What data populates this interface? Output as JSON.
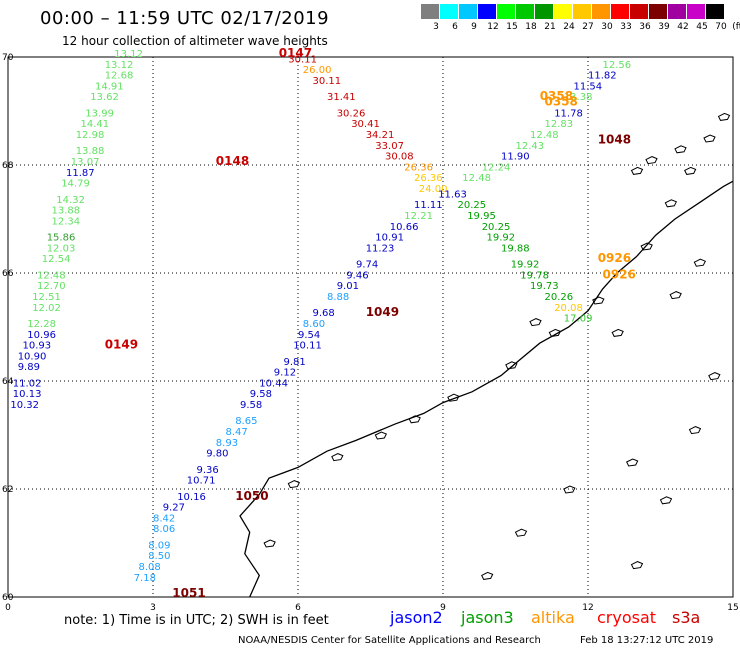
{
  "header": {
    "title": "00:00 – 11:59 UTC 02/17/2019",
    "subtitle": "12 hour collection of altimeter wave heights"
  },
  "colorbar": {
    "unit": "(ft)",
    "labels": [
      "3",
      "6",
      "9",
      "12",
      "15",
      "18",
      "21",
      "24",
      "27",
      "30",
      "33",
      "36",
      "39",
      "42",
      "45",
      "70"
    ],
    "colors": [
      "#7f7f7f",
      "#00ffff",
      "#00c8ff",
      "#0000ff",
      "#00ff00",
      "#00c800",
      "#009600",
      "#ffff00",
      "#ffc800",
      "#ff9600",
      "#ff0000",
      "#c80000",
      "#7d0000",
      "#a000a0",
      "#c800c8",
      "#000000"
    ]
  },
  "axes": {
    "x_ticks": [
      "0",
      "3",
      "6",
      "9",
      "12",
      "15"
    ],
    "y_ticks": [
      "70",
      "68",
      "66",
      "64",
      "62",
      "60"
    ]
  },
  "footer": {
    "note": "note:  1) Time is in UTC;  2) SWH is in feet",
    "credit": "NOAA/NESDIS Center for Satellite Applications and Research",
    "stamp": "Feb 18  13:27:12 UTC 2019"
  },
  "legend": [
    {
      "name": "jason2",
      "color": "#0000ff"
    },
    {
      "name": "jason3",
      "color": "#00a000"
    },
    {
      "name": "altika",
      "color": "#ff9600"
    },
    {
      "name": "cryosat",
      "color": "#ff0000"
    },
    {
      "name": "s3a",
      "color": "#c80000"
    }
  ],
  "time_labels": [
    {
      "text": "0147",
      "lon": 5.6,
      "lat": 70.0,
      "color": "#c80000"
    },
    {
      "text": "0148",
      "lon": 4.3,
      "lat": 68.0,
      "color": "#c80000"
    },
    {
      "text": "0149",
      "lon": 2.0,
      "lat": 64.6,
      "color": "#c80000"
    },
    {
      "text": "1048",
      "lon": 12.2,
      "lat": 68.4,
      "color": "#7d0000"
    },
    {
      "text": "1049",
      "lon": 7.4,
      "lat": 65.2,
      "color": "#7d0000"
    },
    {
      "text": "1050",
      "lon": 4.7,
      "lat": 61.8,
      "color": "#7d0000"
    },
    {
      "text": "1051",
      "lon": 3.4,
      "lat": 60.0,
      "color": "#7d0000"
    },
    {
      "text": "0358",
      "lon": 11.0,
      "lat": 69.2,
      "color": "#ff9600"
    },
    {
      "text": "0358",
      "lon": 11.1,
      "lat": 69.1,
      "color": "#ff9600"
    },
    {
      "text": "0926",
      "lon": 12.2,
      "lat": 66.2,
      "color": "#ff9600"
    },
    {
      "text": "0926",
      "lon": 12.3,
      "lat": 65.9,
      "color": "#ff9600"
    }
  ],
  "tracks": [
    {
      "name": "s3a",
      "points": [
        {
          "v": "13.12",
          "lon": 2.2,
          "lat": 70.0,
          "c": "#64e164"
        },
        {
          "v": "13.12",
          "lon": 2.0,
          "lat": 69.8,
          "c": "#64e164"
        },
        {
          "v": "12.68",
          "lon": 2.0,
          "lat": 69.6,
          "c": "#64e164"
        },
        {
          "v": "14.91",
          "lon": 1.8,
          "lat": 69.4,
          "c": "#64e164"
        },
        {
          "v": "13.62",
          "lon": 1.7,
          "lat": 69.2,
          "c": "#64e164"
        },
        {
          "v": "13.99",
          "lon": 1.6,
          "lat": 68.9,
          "c": "#64e164"
        },
        {
          "v": "14.41",
          "lon": 1.5,
          "lat": 68.7,
          "c": "#64e164"
        },
        {
          "v": "12.98",
          "lon": 1.4,
          "lat": 68.5,
          "c": "#64e164"
        },
        {
          "v": "13.88",
          "lon": 1.4,
          "lat": 68.2,
          "c": "#64e164"
        },
        {
          "v": "13.07",
          "lon": 1.3,
          "lat": 68.0,
          "c": "#64e164"
        },
        {
          "v": "11.87",
          "lon": 1.2,
          "lat": 67.8,
          "c": "#0000c8"
        },
        {
          "v": "14.79",
          "lon": 1.1,
          "lat": 67.6,
          "c": "#64e164"
        },
        {
          "v": "14.32",
          "lon": 1.0,
          "lat": 67.3,
          "c": "#64e164"
        },
        {
          "v": "13.88",
          "lon": 0.9,
          "lat": 67.1,
          "c": "#64e164"
        },
        {
          "v": "12.34",
          "lon": 0.9,
          "lat": 66.9,
          "c": "#64e164"
        },
        {
          "v": "15.86",
          "lon": 0.8,
          "lat": 66.6,
          "c": "#32a032"
        },
        {
          "v": "12.03",
          "lon": 0.8,
          "lat": 66.4,
          "c": "#64e164"
        },
        {
          "v": "12.54",
          "lon": 0.7,
          "lat": 66.2,
          "c": "#64e164"
        },
        {
          "v": "12.48",
          "lon": 0.6,
          "lat": 65.9,
          "c": "#64e164"
        },
        {
          "v": "12.70",
          "lon": 0.6,
          "lat": 65.7,
          "c": "#64e164"
        },
        {
          "v": "12.51",
          "lon": 0.5,
          "lat": 65.5,
          "c": "#64e164"
        },
        {
          "v": "12.02",
          "lon": 0.5,
          "lat": 65.3,
          "c": "#64e164"
        },
        {
          "v": "12.28",
          "lon": 0.4,
          "lat": 65.0,
          "c": "#64e164"
        },
        {
          "v": "10.96",
          "lon": 0.4,
          "lat": 64.8,
          "c": "#0000c8"
        },
        {
          "v": "10.93",
          "lon": 0.3,
          "lat": 64.6,
          "c": "#0000c8"
        },
        {
          "v": "10.90",
          "lon": 0.2,
          "lat": 64.4,
          "c": "#0000c8"
        },
        {
          "v": "9.89",
          "lon": 0.2,
          "lat": 64.2,
          "c": "#0000c8"
        },
        {
          "v": "11.02",
          "lon": 0.1,
          "lat": 63.9,
          "c": "#0000c8"
        },
        {
          "v": "10.13",
          "lon": 0.1,
          "lat": 63.7,
          "c": "#0000c8"
        },
        {
          "v": "10.32",
          "lon": 0.05,
          "lat": 63.5,
          "c": "#0000c8"
        }
      ]
    },
    {
      "name": "cryosat-altika",
      "points": [
        {
          "v": "30.11",
          "lon": 5.8,
          "lat": 69.9,
          "c": "#c80000"
        },
        {
          "v": "26.00",
          "lon": 6.1,
          "lat": 69.7,
          "c": "#ff9600"
        },
        {
          "v": "30.11",
          "lon": 6.3,
          "lat": 69.5,
          "c": "#c80000"
        },
        {
          "v": "31.41",
          "lon": 6.6,
          "lat": 69.2,
          "c": "#c80000"
        },
        {
          "v": "30.26",
          "lon": 6.8,
          "lat": 68.9,
          "c": "#c80000"
        },
        {
          "v": "30.41",
          "lon": 7.1,
          "lat": 68.7,
          "c": "#c80000"
        },
        {
          "v": "34.21",
          "lon": 7.4,
          "lat": 68.5,
          "c": "#c80000"
        },
        {
          "v": "33.07",
          "lon": 7.6,
          "lat": 68.3,
          "c": "#c80000"
        },
        {
          "v": "30.08",
          "lon": 7.8,
          "lat": 68.1,
          "c": "#c80000"
        },
        {
          "v": "26.36",
          "lon": 8.2,
          "lat": 67.9,
          "c": "#ff9600"
        },
        {
          "v": "26.36",
          "lon": 8.4,
          "lat": 67.7,
          "c": "#ffc800"
        },
        {
          "v": "24.00",
          "lon": 8.5,
          "lat": 67.5,
          "c": "#ffc800"
        },
        {
          "v": "20.25",
          "lon": 9.3,
          "lat": 67.2,
          "c": "#00a000"
        },
        {
          "v": "19.95",
          "lon": 9.5,
          "lat": 67.0,
          "c": "#00a000"
        },
        {
          "v": "20.25",
          "lon": 9.8,
          "lat": 66.8,
          "c": "#00a000"
        },
        {
          "v": "19.92",
          "lon": 9.9,
          "lat": 66.6,
          "c": "#00a000"
        },
        {
          "v": "19.88",
          "lon": 10.2,
          "lat": 66.4,
          "c": "#00a000"
        },
        {
          "v": "19.92",
          "lon": 10.4,
          "lat": 66.1,
          "c": "#00a000"
        },
        {
          "v": "19.78",
          "lon": 10.6,
          "lat": 65.9,
          "c": "#00a000"
        },
        {
          "v": "19.73",
          "lon": 10.8,
          "lat": 65.7,
          "c": "#00a000"
        },
        {
          "v": "20.26",
          "lon": 11.1,
          "lat": 65.5,
          "c": "#00a000"
        },
        {
          "v": "20.08",
          "lon": 11.3,
          "lat": 65.3,
          "c": "#ffc800"
        },
        {
          "v": "17.09",
          "lon": 11.5,
          "lat": 65.1,
          "c": "#32c832"
        }
      ]
    },
    {
      "name": "jason3",
      "points": [
        {
          "v": "12.56",
          "lon": 12.3,
          "lat": 69.8,
          "c": "#64e164"
        },
        {
          "v": "11.82",
          "lon": 12.0,
          "lat": 69.6,
          "c": "#0000c8"
        },
        {
          "v": "11.54",
          "lon": 11.7,
          "lat": 69.4,
          "c": "#0000c8"
        },
        {
          "v": "13.38",
          "lon": 11.5,
          "lat": 69.2,
          "c": "#64e164"
        },
        {
          "v": "11.78",
          "lon": 11.3,
          "lat": 68.9,
          "c": "#0000c8"
        },
        {
          "v": "12.83",
          "lon": 11.1,
          "lat": 68.7,
          "c": "#64e164"
        },
        {
          "v": "12.48",
          "lon": 10.8,
          "lat": 68.5,
          "c": "#64e164"
        },
        {
          "v": "12.43",
          "lon": 10.5,
          "lat": 68.3,
          "c": "#64e164"
        },
        {
          "v": "11.90",
          "lon": 10.2,
          "lat": 68.1,
          "c": "#0000c8"
        },
        {
          "v": "12.24",
          "lon": 9.8,
          "lat": 67.9,
          "c": "#64e164"
        },
        {
          "v": "12.48",
          "lon": 9.4,
          "lat": 67.7,
          "c": "#64e164"
        },
        {
          "v": "11.63",
          "lon": 8.9,
          "lat": 67.4,
          "c": "#0000c8"
        },
        {
          "v": "11.11",
          "lon": 8.4,
          "lat": 67.2,
          "c": "#0000c8"
        },
        {
          "v": "12.21",
          "lon": 8.2,
          "lat": 67.0,
          "c": "#64e164"
        },
        {
          "v": "10.66",
          "lon": 7.9,
          "lat": 66.8,
          "c": "#0000c8"
        },
        {
          "v": "10.91",
          "lon": 7.6,
          "lat": 66.6,
          "c": "#0000c8"
        },
        {
          "v": "11.23",
          "lon": 7.4,
          "lat": 66.4,
          "c": "#0000c8"
        },
        {
          "v": "9.74",
          "lon": 7.2,
          "lat": 66.1,
          "c": "#0000c8"
        },
        {
          "v": "9.46",
          "lon": 7.0,
          "lat": 65.9,
          "c": "#0000c8"
        },
        {
          "v": "9.01",
          "lon": 6.8,
          "lat": 65.7,
          "c": "#0000c8"
        },
        {
          "v": "8.88",
          "lon": 6.6,
          "lat": 65.5,
          "c": "#1ea0ff"
        },
        {
          "v": "9.68",
          "lon": 6.3,
          "lat": 65.2,
          "c": "#0000c8"
        },
        {
          "v": "8.60",
          "lon": 6.1,
          "lat": 65.0,
          "c": "#1ea0ff"
        },
        {
          "v": "9.54",
          "lon": 6.0,
          "lat": 64.8,
          "c": "#0000c8"
        },
        {
          "v": "10.11",
          "lon": 5.9,
          "lat": 64.6,
          "c": "#0000c8"
        },
        {
          "v": "9.81",
          "lon": 5.7,
          "lat": 64.3,
          "c": "#0000c8"
        },
        {
          "v": "9.12",
          "lon": 5.5,
          "lat": 64.1,
          "c": "#0000c8"
        },
        {
          "v": "10.44",
          "lon": 5.2,
          "lat": 63.9,
          "c": "#0000c8"
        },
        {
          "v": "9.58",
          "lon": 5.0,
          "lat": 63.7,
          "c": "#0000c8"
        },
        {
          "v": "9.58",
          "lon": 4.8,
          "lat": 63.5,
          "c": "#0000c8"
        },
        {
          "v": "8.65",
          "lon": 4.7,
          "lat": 63.2,
          "c": "#1ea0ff"
        },
        {
          "v": "8.47",
          "lon": 4.5,
          "lat": 63.0,
          "c": "#1ea0ff"
        },
        {
          "v": "8.93",
          "lon": 4.3,
          "lat": 62.8,
          "c": "#1ea0ff"
        },
        {
          "v": "9.80",
          "lon": 4.1,
          "lat": 62.6,
          "c": "#0000c8"
        },
        {
          "v": "9.36",
          "lon": 3.9,
          "lat": 62.3,
          "c": "#0000c8"
        },
        {
          "v": "10.71",
          "lon": 3.7,
          "lat": 62.1,
          "c": "#0000c8"
        },
        {
          "v": "10.16",
          "lon": 3.5,
          "lat": 61.8,
          "c": "#0000c8"
        },
        {
          "v": "9.27",
          "lon": 3.2,
          "lat": 61.6,
          "c": "#0000c8"
        },
        {
          "v": "8.42",
          "lon": 3.0,
          "lat": 61.4,
          "c": "#1ea0ff"
        },
        {
          "v": "8.06",
          "lon": 3.0,
          "lat": 61.2,
          "c": "#1ea0ff"
        },
        {
          "v": "8.09",
          "lon": 2.9,
          "lat": 60.9,
          "c": "#1ea0ff"
        },
        {
          "v": "8.50",
          "lon": 2.9,
          "lat": 60.7,
          "c": "#1ea0ff"
        },
        {
          "v": "8.08",
          "lon": 2.7,
          "lat": 60.5,
          "c": "#1ea0ff"
        },
        {
          "v": "7.18",
          "lon": 2.6,
          "lat": 60.3,
          "c": "#1ea0ff"
        }
      ]
    }
  ]
}
